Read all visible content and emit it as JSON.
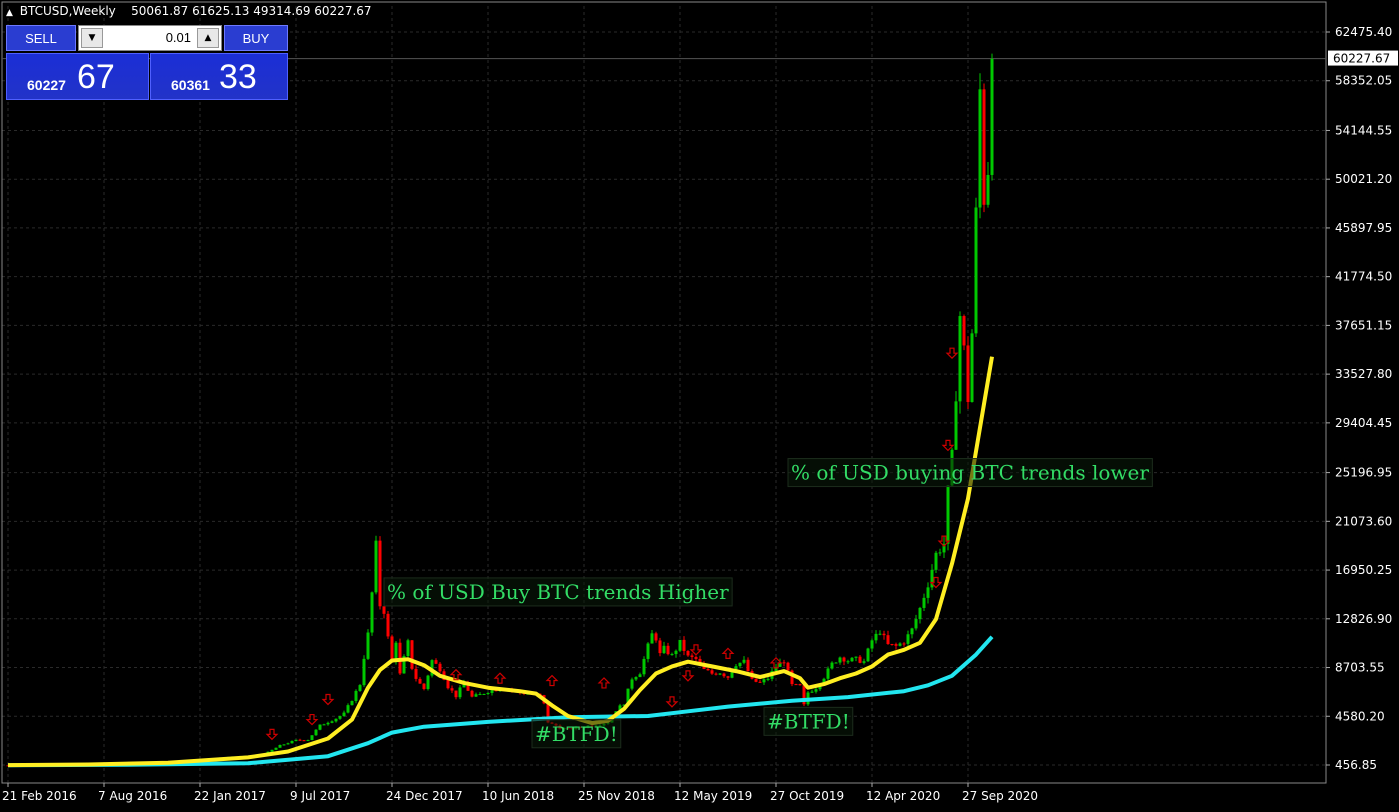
{
  "header": {
    "symbol": "BTCUSD,Weekly",
    "ohlc": "50061.87 61625.13 49314.69 60227.67"
  },
  "trade_panel": {
    "sell_label": "SELL",
    "buy_label": "BUY",
    "lot": "0.01",
    "sell_price_small": "60227",
    "sell_price_big": "67",
    "buy_price_small": "60361",
    "buy_price_big": "33"
  },
  "colors": {
    "background": "#000000",
    "bull": "#00c800",
    "bear": "#ff0000",
    "ma_fast": "#ffee22",
    "ma_slow": "#22e6f0",
    "grid": "#2a2a2a",
    "annotation_text": "#33dd66",
    "arrow": "#cc0000",
    "price_label_bg": "#ffffff"
  },
  "chart_data": {
    "type": "candlestick",
    "ylim": [
      456.85,
      62475.4
    ],
    "y_ticks": [
      "62475.40",
      "58352.05",
      "54144.55",
      "50021.20",
      "45897.95",
      "41774.50",
      "37651.15",
      "33527.80",
      "29404.45",
      "25196.95",
      "21073.60",
      "16950.25",
      "12826.90",
      "8703.55",
      "4580.20",
      "456.85"
    ],
    "current_price": "60227.67",
    "x_labels": [
      "21 Feb 2016",
      "7 Aug 2016",
      "22 Jan 2017",
      "9 Jul 2017",
      "24 Dec 2017",
      "10 Jun 2018",
      "25 Nov 2018",
      "12 May 2019",
      "27 Oct 2019",
      "12 Apr 2020",
      "27 Sep 2020"
    ],
    "x_label_weeks": [
      0,
      24,
      48,
      72,
      96,
      120,
      144,
      168,
      192,
      216,
      240
    ],
    "anchors": [
      [
        0,
        430
      ],
      [
        20,
        580
      ],
      [
        30,
        620
      ],
      [
        40,
        750
      ],
      [
        48,
        900
      ],
      [
        56,
        1150
      ],
      [
        60,
        1200
      ],
      [
        64,
        1350
      ],
      [
        68,
        2100
      ],
      [
        72,
        2550
      ],
      [
        75,
        2600
      ],
      [
        78,
        3800
      ],
      [
        82,
        4400
      ],
      [
        84,
        4800
      ],
      [
        86,
        6000
      ],
      [
        88,
        7300
      ],
      [
        89,
        9600
      ],
      [
        90,
        11500
      ],
      [
        91,
        15000
      ],
      [
        92,
        19000
      ],
      [
        93,
        14000
      ],
      [
        94,
        13500
      ],
      [
        95,
        11200
      ],
      [
        96,
        9200
      ],
      [
        97,
        11000
      ],
      [
        98,
        8100
      ],
      [
        99,
        9500
      ],
      [
        100,
        10800
      ],
      [
        101,
        8700
      ],
      [
        102,
        7800
      ],
      [
        103,
        7300
      ],
      [
        104,
        6900
      ],
      [
        106,
        9300
      ],
      [
        108,
        8600
      ],
      [
        110,
        7100
      ],
      [
        112,
        6300
      ],
      [
        114,
        7400
      ],
      [
        116,
        6200
      ],
      [
        118,
        6400
      ],
      [
        120,
        6700
      ],
      [
        124,
        7000
      ],
      [
        128,
        6600
      ],
      [
        130,
        6500
      ],
      [
        132,
        6400
      ],
      [
        133,
        6300
      ],
      [
        134,
        5600
      ],
      [
        135,
        4100
      ],
      [
        136,
        3900
      ],
      [
        137,
        3800
      ],
      [
        138,
        3600
      ],
      [
        140,
        3500
      ],
      [
        144,
        3700
      ],
      [
        146,
        3850
      ],
      [
        148,
        3900
      ],
      [
        150,
        4100
      ],
      [
        152,
        5100
      ],
      [
        154,
        5700
      ],
      [
        156,
        7800
      ],
      [
        158,
        8300
      ],
      [
        160,
        10500
      ],
      [
        161,
        11500
      ],
      [
        162,
        11200
      ],
      [
        163,
        9800
      ],
      [
        164,
        10300
      ],
      [
        166,
        9700
      ],
      [
        168,
        10800
      ],
      [
        170,
        9600
      ],
      [
        172,
        9400
      ],
      [
        174,
        8500
      ],
      [
        176,
        8200
      ],
      [
        178,
        8300
      ],
      [
        180,
        7900
      ],
      [
        182,
        9000
      ],
      [
        184,
        9200
      ],
      [
        186,
        7600
      ],
      [
        188,
        7400
      ],
      [
        190,
        7800
      ],
      [
        192,
        8800
      ],
      [
        194,
        9300
      ],
      [
        196,
        7200
      ],
      [
        198,
        7100
      ],
      [
        199,
        5500
      ],
      [
        200,
        6600
      ],
      [
        202,
        7000
      ],
      [
        204,
        7900
      ],
      [
        206,
        9000
      ],
      [
        208,
        9600
      ],
      [
        210,
        9300
      ],
      [
        212,
        9400
      ],
      [
        214,
        9200
      ],
      [
        216,
        11000
      ],
      [
        217,
        11400
      ],
      [
        218,
        11800
      ],
      [
        219,
        11200
      ],
      [
        220,
        10600
      ],
      [
        222,
        10500
      ],
      [
        224,
        10900
      ],
      [
        226,
        11900
      ],
      [
        228,
        13700
      ],
      [
        230,
        15800
      ],
      [
        232,
        18300
      ],
      [
        234,
        19200
      ],
      [
        235,
        23600
      ],
      [
        236,
        26500
      ],
      [
        237,
        32000
      ],
      [
        238,
        38500
      ],
      [
        239,
        35500
      ],
      [
        240,
        31500
      ],
      [
        241,
        37000
      ],
      [
        242,
        47000
      ],
      [
        243,
        57500
      ],
      [
        244,
        48500
      ],
      [
        245,
        51000
      ],
      [
        246,
        60200
      ]
    ],
    "ma_fast_points": [
      [
        0,
        450
      ],
      [
        20,
        500
      ],
      [
        40,
        650
      ],
      [
        60,
        1100
      ],
      [
        70,
        1600
      ],
      [
        80,
        2700
      ],
      [
        86,
        4300
      ],
      [
        90,
        7000
      ],
      [
        93,
        8500
      ],
      [
        96,
        9300
      ],
      [
        100,
        9400
      ],
      [
        104,
        8900
      ],
      [
        108,
        8000
      ],
      [
        114,
        7400
      ],
      [
        120,
        7000
      ],
      [
        128,
        6700
      ],
      [
        132,
        6500
      ],
      [
        136,
        5500
      ],
      [
        140,
        4600
      ],
      [
        146,
        4000
      ],
      [
        150,
        4200
      ],
      [
        154,
        5200
      ],
      [
        158,
        6800
      ],
      [
        162,
        8200
      ],
      [
        166,
        8800
      ],
      [
        170,
        9200
      ],
      [
        176,
        8800
      ],
      [
        182,
        8400
      ],
      [
        188,
        7900
      ],
      [
        194,
        8400
      ],
      [
        198,
        7800
      ],
      [
        200,
        7000
      ],
      [
        204,
        7300
      ],
      [
        208,
        7800
      ],
      [
        212,
        8200
      ],
      [
        216,
        8800
      ],
      [
        220,
        9800
      ],
      [
        224,
        10200
      ],
      [
        228,
        10800
      ],
      [
        232,
        12800
      ],
      [
        236,
        17500
      ],
      [
        240,
        23000
      ],
      [
        242,
        27000
      ],
      [
        244,
        31000
      ],
      [
        246,
        35000
      ]
    ],
    "ma_slow_points": [
      [
        0,
        430
      ],
      [
        30,
        470
      ],
      [
        60,
        600
      ],
      [
        80,
        1200
      ],
      [
        90,
        2300
      ],
      [
        96,
        3200
      ],
      [
        104,
        3700
      ],
      [
        120,
        4100
      ],
      [
        140,
        4500
      ],
      [
        160,
        4600
      ],
      [
        170,
        5000
      ],
      [
        180,
        5400
      ],
      [
        196,
        5900
      ],
      [
        210,
        6200
      ],
      [
        224,
        6700
      ],
      [
        230,
        7200
      ],
      [
        236,
        8000
      ],
      [
        242,
        9800
      ],
      [
        246,
        11300
      ]
    ],
    "up_arrows": [
      [
        112,
        8100
      ],
      [
        123,
        7800
      ],
      [
        136,
        7600
      ],
      [
        149,
        7400
      ],
      [
        180,
        9900
      ],
      [
        192,
        9100
      ]
    ],
    "down_arrows": [
      [
        66,
        3050
      ],
      [
        76,
        4300
      ],
      [
        80,
        6000
      ],
      [
        166,
        5800
      ],
      [
        170,
        8000
      ],
      [
        172,
        10200
      ],
      [
        232,
        15900
      ],
      [
        234,
        19400
      ],
      [
        235,
        27500
      ],
      [
        236,
        35300
      ]
    ],
    "annotations": [
      {
        "text": "% of USD Buy BTC trends Higher",
        "x": 94,
        "y": 15100
      },
      {
        "text": "%  of  USD buying BTC trends lower",
        "x": 195,
        "y": 25200
      },
      {
        "text": "#BTFD!",
        "x": 131,
        "y": 3100
      },
      {
        "text": "#BTFD!",
        "x": 189,
        "y": 4150
      }
    ]
  }
}
